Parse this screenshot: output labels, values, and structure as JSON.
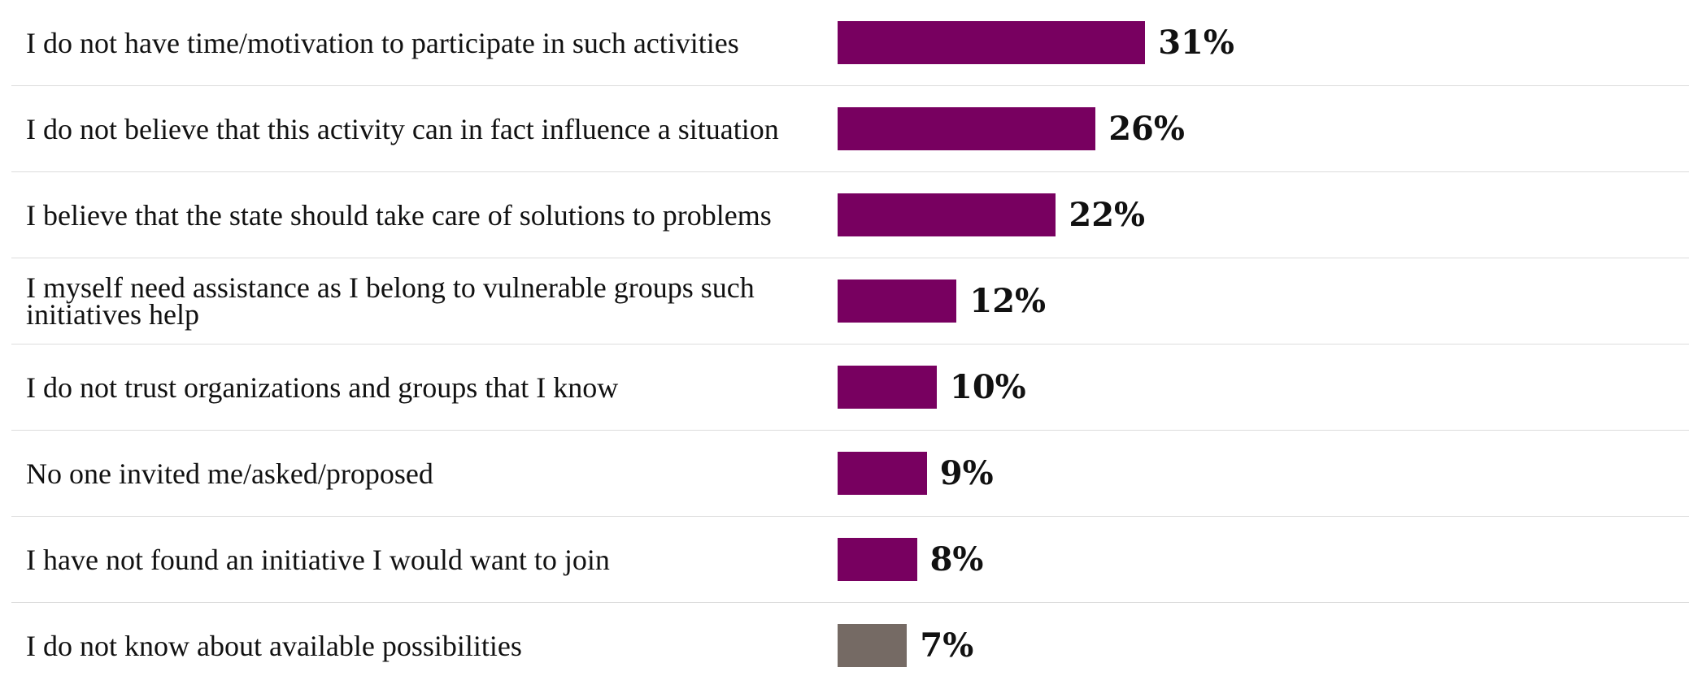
{
  "chart_data": {
    "type": "bar",
    "orientation": "horizontal",
    "title": "",
    "xlabel": "",
    "ylabel": "",
    "xlim": [
      0,
      100
    ],
    "grid": false,
    "legend": "none",
    "value_suffix": "%",
    "categories": [
      "I do not have time/motivation to participate in such activities",
      "I do not believe that this activity can in fact influence a situation",
      "I believe that the state should take care of solutions to problems",
      "I myself need assistance as I belong to vulnerable groups such initiatives help",
      "I do not trust organizations and groups that I know",
      "No one invited me/asked/proposed",
      "I have not found an initiative I would want to join",
      "I do not know about available possibilities"
    ],
    "values": [
      31,
      26,
      22,
      12,
      10,
      9,
      8,
      7
    ],
    "value_labels": [
      "31%",
      "26%",
      "22%",
      "12%",
      "10%",
      "9%",
      "8%",
      "7%"
    ],
    "colors": [
      "#780060",
      "#780060",
      "#780060",
      "#780060",
      "#780060",
      "#780060",
      "#780060",
      "#756a64"
    ]
  }
}
